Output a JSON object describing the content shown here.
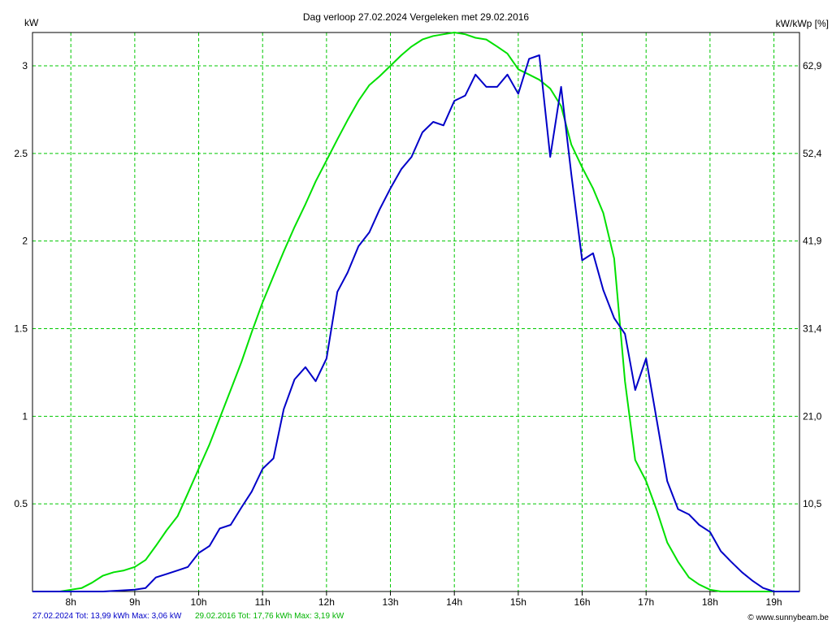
{
  "chart_data": {
    "type": "line",
    "title": "Dag  verloop 27.02.2024   Vergeleken met 29.02.2016",
    "ylabel_left": "kW",
    "ylabel_right": "kW/kWp [%]",
    "x_tick_labels": [
      "8h",
      "9h",
      "10h",
      "11h",
      "12h",
      "13h",
      "14h",
      "15h",
      "16h",
      "17h",
      "18h",
      "19h"
    ],
    "x_ticks": [
      8,
      9,
      10,
      11,
      12,
      13,
      14,
      15,
      16,
      17,
      18,
      19
    ],
    "xlim": [
      7.4,
      19.4
    ],
    "ylim": [
      0,
      3.19
    ],
    "y_ticks": [
      0.5,
      1,
      1.5,
      2,
      2.5,
      3
    ],
    "y_tick_labels": [
      "0.5",
      "1",
      "1.5",
      "2",
      "2.5",
      "3"
    ],
    "y_right_tick_labels": [
      "10,5",
      "21,0",
      "31,4",
      "41,9",
      "52,4",
      "62,9"
    ],
    "grid": true,
    "colors": {
      "series_2024": "#0000c8",
      "series_2016": "#00e000",
      "grid": "#00c800",
      "axis": "#000000"
    },
    "series": [
      {
        "name": "27.02.2024",
        "x": [
          7.4,
          8.5,
          9.0,
          9.17,
          9.33,
          9.5,
          9.67,
          9.83,
          10.0,
          10.17,
          10.33,
          10.5,
          10.67,
          10.83,
          11.0,
          11.17,
          11.33,
          11.5,
          11.67,
          11.83,
          12.0,
          12.17,
          12.33,
          12.5,
          12.67,
          12.83,
          13.0,
          13.17,
          13.33,
          13.5,
          13.67,
          13.83,
          14.0,
          14.17,
          14.33,
          14.5,
          14.67,
          14.83,
          15.0,
          15.17,
          15.33,
          15.5,
          15.67,
          15.83,
          16.0,
          16.17,
          16.33,
          16.5,
          16.67,
          16.83,
          17.0,
          17.17,
          17.33,
          17.5,
          17.67,
          17.83,
          18.0,
          18.17,
          18.33,
          18.5,
          18.67,
          18.83,
          19.0,
          19.17,
          19.4
        ],
        "values": [
          0,
          0,
          0.01,
          0.02,
          0.08,
          0.1,
          0.12,
          0.14,
          0.22,
          0.26,
          0.36,
          0.38,
          0.48,
          0.57,
          0.7,
          0.76,
          1.04,
          1.21,
          1.28,
          1.2,
          1.33,
          1.71,
          1.82,
          1.97,
          2.05,
          2.18,
          2.3,
          2.41,
          2.48,
          2.62,
          2.68,
          2.66,
          2.8,
          2.83,
          2.95,
          2.88,
          2.88,
          2.95,
          2.84,
          3.04,
          3.06,
          2.48,
          2.88,
          2.38,
          1.89,
          1.93,
          1.72,
          1.56,
          1.47,
          1.15,
          1.33,
          0.97,
          0.63,
          0.47,
          0.44,
          0.38,
          0.34,
          0.23,
          0.17,
          0.11,
          0.06,
          0.02,
          0.0,
          0.0,
          0.0
        ]
      },
      {
        "name": "29.02.2016",
        "x": [
          7.4,
          7.67,
          7.83,
          8.0,
          8.17,
          8.33,
          8.5,
          8.67,
          8.83,
          9.0,
          9.17,
          9.33,
          9.5,
          9.67,
          9.83,
          10.0,
          10.17,
          10.33,
          10.5,
          10.67,
          10.83,
          11.0,
          11.17,
          11.33,
          11.5,
          11.67,
          11.83,
          12.0,
          12.17,
          12.33,
          12.5,
          12.67,
          12.83,
          13.0,
          13.17,
          13.33,
          13.5,
          13.67,
          13.83,
          14.0,
          14.17,
          14.33,
          14.5,
          14.67,
          14.83,
          15.0,
          15.17,
          15.33,
          15.5,
          15.67,
          15.83,
          16.0,
          16.17,
          16.33,
          16.5,
          16.67,
          16.83,
          17.0,
          17.17,
          17.33,
          17.5,
          17.67,
          17.83,
          18.0,
          18.17,
          18.33,
          18.5,
          19.4
        ],
        "values": [
          0,
          0,
          0.0,
          0.01,
          0.02,
          0.05,
          0.09,
          0.11,
          0.12,
          0.14,
          0.18,
          0.26,
          0.35,
          0.43,
          0.56,
          0.7,
          0.84,
          0.99,
          1.15,
          1.31,
          1.48,
          1.65,
          1.8,
          1.94,
          2.08,
          2.21,
          2.34,
          2.46,
          2.58,
          2.69,
          2.8,
          2.89,
          2.94,
          3.0,
          3.06,
          3.11,
          3.15,
          3.17,
          3.18,
          3.19,
          3.18,
          3.16,
          3.15,
          3.11,
          3.07,
          2.98,
          2.95,
          2.92,
          2.87,
          2.77,
          2.55,
          2.42,
          2.3,
          2.16,
          1.9,
          1.2,
          0.75,
          0.63,
          0.46,
          0.28,
          0.17,
          0.08,
          0.04,
          0.01,
          0.0,
          0.0,
          0.0,
          0.0
        ]
      }
    ],
    "footer": {
      "blue": "27.02.2024 Tot: 13,99 kWh Max: 3,06 kW",
      "green": "29.02.2016 Tot: 17,76 kWh Max: 3,19 kW",
      "credit": "© www.sunnybeam.be"
    }
  }
}
